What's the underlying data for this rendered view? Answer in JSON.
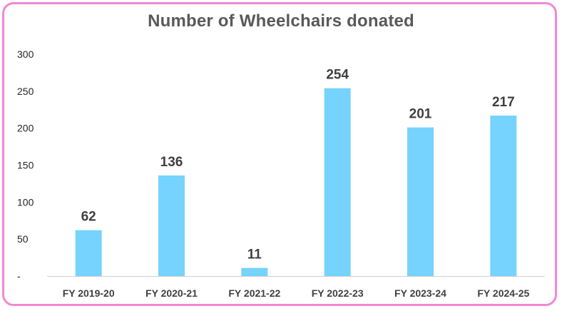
{
  "chart_data": {
    "type": "bar",
    "title": "Number of Wheelchairs donated",
    "categories": [
      "FY 2019-20",
      "FY 2020-21",
      "FY 2021-22",
      "FY 2022-23",
      "FY 2023-24",
      "FY 2024-25"
    ],
    "values": [
      62,
      136,
      11,
      254,
      201,
      217
    ],
    "data_labels": [
      "62",
      "136",
      "11",
      "254",
      "201",
      "217"
    ],
    "ylim": [
      0,
      300
    ],
    "y_ticks": [
      0,
      50,
      100,
      150,
      200,
      250,
      300
    ],
    "y_tick_labels": [
      "-",
      "50",
      "100",
      "150",
      "200",
      "250",
      "300"
    ],
    "grid": false,
    "legend": "none",
    "bar_color": "#75d3fd",
    "frame_color": "#f487d4"
  }
}
